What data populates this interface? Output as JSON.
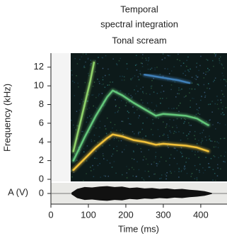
{
  "chart_data": [
    {
      "type": "spectrogram",
      "title": [
        "Temporal",
        "spectral integration"
      ],
      "subtitle": "Tonal scream",
      "ylabel": "Frequency (kHz)",
      "xlim": [
        0,
        470
      ],
      "ylim": [
        0,
        13.5
      ],
      "yticks": [
        0,
        2,
        4,
        6,
        8,
        10,
        12
      ],
      "series": [
        {
          "color": "#f2c23a",
          "x": [
            60,
            90,
            120,
            150,
            165,
            190,
            220,
            250,
            280,
            300,
            330,
            360,
            390,
            420
          ],
          "values": [
            1.0,
            2.2,
            3.4,
            4.4,
            4.8,
            4.6,
            4.2,
            4.0,
            3.7,
            3.8,
            3.7,
            3.6,
            3.4,
            3.0
          ]
        },
        {
          "color": "#63c77a",
          "x": [
            60,
            90,
            120,
            150,
            165,
            190,
            220,
            250,
            280,
            300,
            330,
            360,
            390,
            420
          ],
          "values": [
            2.0,
            4.5,
            6.8,
            8.8,
            9.5,
            9.0,
            8.2,
            7.5,
            6.8,
            7.0,
            6.9,
            6.8,
            6.5,
            5.8
          ]
        },
        {
          "color": "#8fd36a",
          "x": [
            60,
            75,
            90,
            105,
            115
          ],
          "values": [
            3.0,
            5.5,
            8.0,
            10.5,
            12.5
          ]
        },
        {
          "color": "#3f7fb8",
          "x": [
            250,
            280,
            310,
            340,
            370
          ],
          "values": [
            11.2,
            11.0,
            10.8,
            10.6,
            10.3
          ]
        }
      ]
    },
    {
      "type": "waveform",
      "ylabel": "A (V)",
      "xlabel": "Time (ms)",
      "xlim": [
        0,
        470
      ],
      "ylim": [
        -1,
        1
      ],
      "yticks": [
        0
      ],
      "xticks": [
        0,
        100,
        200,
        300,
        400
      ],
      "series": [
        {
          "color": "#111111",
          "x": [
            55,
            70,
            90,
            110,
            130,
            150,
            170,
            190,
            210,
            230,
            250,
            270,
            290,
            310,
            330,
            350,
            370,
            390,
            410,
            420,
            430
          ],
          "values": [
            0.1,
            0.5,
            0.7,
            0.65,
            0.75,
            0.8,
            0.7,
            0.75,
            0.6,
            0.65,
            0.55,
            0.6,
            0.5,
            0.55,
            0.45,
            0.5,
            0.4,
            0.35,
            0.25,
            0.15,
            0.05
          ]
        }
      ]
    }
  ]
}
